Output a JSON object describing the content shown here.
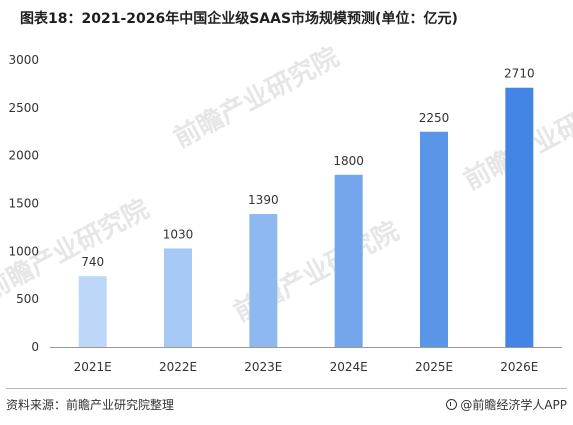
{
  "header": {
    "title": "图表18：2021-2026年中国企业级SAAS市场规模预测(单位：亿元)"
  },
  "watermark": {
    "text": "前瞻产业研究院"
  },
  "chart_data": {
    "type": "bar",
    "title": "图表18：2021-2026年中国企业级SAAS市场规模预测(单位：亿元)",
    "categories": [
      "2021E",
      "2022E",
      "2023E",
      "2024E",
      "2025E",
      "2026E"
    ],
    "values": [
      740,
      1030,
      1390,
      1800,
      2250,
      2710
    ],
    "data_labels": [
      "740",
      "1030",
      "1390",
      "1800",
      "2250",
      "2710"
    ],
    "y_ticks": [
      0,
      500,
      1000,
      1500,
      2000,
      2500,
      3000
    ],
    "ylim": [
      0,
      3000
    ],
    "grid": false,
    "legend": "none",
    "bar_colors": [
      "#bdd7f8",
      "#a6c8f4",
      "#8eb8f0",
      "#74a6ec",
      "#5a95e8",
      "#4285e4"
    ],
    "axis_color": "#999999"
  },
  "footer": {
    "source": "资料来源：前瞻产业研究院整理",
    "brand": "@前瞻经济学人APP",
    "logo_icon": "qianzhan-logo-icon"
  }
}
